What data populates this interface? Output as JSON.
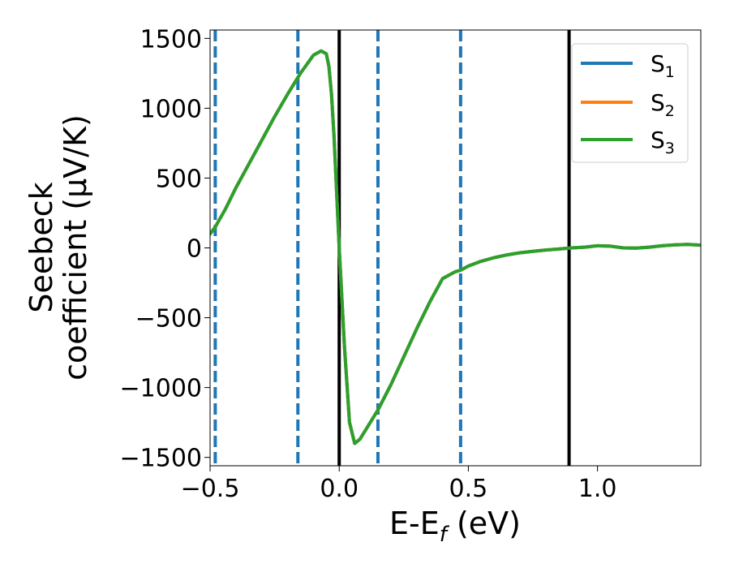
{
  "chart_data": {
    "type": "line",
    "xlabel": {
      "main": "E-E",
      "sub": "f",
      "unit": " (eV)"
    },
    "ylabel": {
      "line1": "Seebeck",
      "line2": "coefficient  (μV/K)"
    },
    "xlim": [
      -0.5,
      1.4
    ],
    "ylim": [
      -1560,
      1560
    ],
    "xticks": [
      -0.5,
      0.0,
      0.5,
      1.0
    ],
    "xtick_labels": [
      "−0.5",
      "0.0",
      "0.5",
      "1.0"
    ],
    "yticks": [
      1500,
      1000,
      500,
      0,
      -500,
      -1000,
      -1500
    ],
    "ytick_labels": [
      "1500",
      "1000",
      "500",
      "0",
      "−500",
      "−1000",
      "−1500"
    ],
    "grid": false,
    "legend_position": "top-right",
    "series": [
      {
        "name": {
          "main": "S",
          "sub": "1"
        },
        "color": "#1f77b4",
        "x": [
          -0.5,
          -0.48,
          -0.44,
          -0.4,
          -0.35,
          -0.3,
          -0.25,
          -0.2,
          -0.15,
          -0.1,
          -0.07,
          -0.05,
          -0.04,
          -0.03,
          -0.02,
          -0.01,
          0.0,
          0.02,
          0.04,
          0.06,
          0.08,
          0.1,
          0.15,
          0.2,
          0.25,
          0.3,
          0.35,
          0.4,
          0.45,
          0.47,
          0.5,
          0.55,
          0.6,
          0.65,
          0.7,
          0.75,
          0.8,
          0.85,
          0.9,
          0.95,
          1.0,
          1.05,
          1.1,
          1.15,
          1.2,
          1.25,
          1.3,
          1.35,
          1.4
        ],
        "y": [
          100,
          150,
          280,
          430,
          600,
          770,
          940,
          1100,
          1250,
          1380,
          1410,
          1390,
          1300,
          1100,
          800,
          400,
          0,
          -700,
          -1250,
          -1400,
          -1370,
          -1310,
          -1160,
          -980,
          -780,
          -580,
          -390,
          -220,
          -170,
          -160,
          -130,
          -95,
          -70,
          -50,
          -35,
          -25,
          -15,
          -8,
          0,
          5,
          15,
          12,
          0,
          -2,
          5,
          15,
          22,
          25,
          20
        ]
      },
      {
        "name": {
          "main": "S",
          "sub": "2"
        },
        "color": "#ff7f0e",
        "x": [
          -0.5,
          -0.48,
          -0.44,
          -0.4,
          -0.35,
          -0.3,
          -0.25,
          -0.2,
          -0.15,
          -0.1,
          -0.07,
          -0.05,
          -0.04,
          -0.03,
          -0.02,
          -0.01,
          0.0,
          0.02,
          0.04,
          0.06,
          0.08,
          0.1,
          0.15,
          0.2,
          0.25,
          0.3,
          0.35,
          0.4,
          0.45,
          0.47,
          0.5,
          0.55,
          0.6,
          0.65,
          0.7,
          0.75,
          0.8,
          0.85,
          0.9,
          0.95,
          1.0,
          1.05,
          1.1,
          1.15,
          1.2,
          1.25,
          1.3,
          1.35,
          1.4
        ],
        "y": [
          100,
          150,
          280,
          430,
          600,
          770,
          940,
          1100,
          1250,
          1380,
          1410,
          1390,
          1300,
          1100,
          800,
          400,
          0,
          -700,
          -1250,
          -1400,
          -1370,
          -1310,
          -1160,
          -980,
          -780,
          -580,
          -390,
          -220,
          -170,
          -160,
          -130,
          -95,
          -70,
          -50,
          -35,
          -25,
          -15,
          -8,
          0,
          5,
          15,
          12,
          0,
          -2,
          5,
          15,
          22,
          25,
          20
        ]
      },
      {
        "name": {
          "main": "S",
          "sub": "3"
        },
        "color": "#2ca02c",
        "x": [
          -0.5,
          -0.48,
          -0.44,
          -0.4,
          -0.35,
          -0.3,
          -0.25,
          -0.2,
          -0.15,
          -0.1,
          -0.07,
          -0.05,
          -0.04,
          -0.03,
          -0.02,
          -0.01,
          0.0,
          0.02,
          0.04,
          0.06,
          0.08,
          0.1,
          0.15,
          0.2,
          0.25,
          0.3,
          0.35,
          0.4,
          0.45,
          0.47,
          0.5,
          0.55,
          0.6,
          0.65,
          0.7,
          0.75,
          0.8,
          0.85,
          0.9,
          0.95,
          1.0,
          1.05,
          1.1,
          1.15,
          1.2,
          1.25,
          1.3,
          1.35,
          1.4
        ],
        "y": [
          100,
          150,
          280,
          430,
          600,
          770,
          940,
          1100,
          1250,
          1380,
          1410,
          1390,
          1300,
          1100,
          800,
          400,
          0,
          -700,
          -1250,
          -1400,
          -1370,
          -1310,
          -1160,
          -980,
          -780,
          -580,
          -390,
          -220,
          -170,
          -160,
          -130,
          -95,
          -70,
          -50,
          -35,
          -25,
          -15,
          -8,
          0,
          5,
          15,
          12,
          0,
          -2,
          5,
          15,
          22,
          25,
          20
        ]
      }
    ],
    "vertical_lines": [
      {
        "x": -0.48,
        "style": "dashed",
        "color": "#1f77b4"
      },
      {
        "x": -0.16,
        "style": "dashed",
        "color": "#1f77b4"
      },
      {
        "x": 0.0,
        "style": "solid",
        "color": "#000000"
      },
      {
        "x": 0.15,
        "style": "dashed",
        "color": "#1f77b4"
      },
      {
        "x": 0.47,
        "style": "dashed",
        "color": "#1f77b4"
      },
      {
        "x": 0.89,
        "style": "solid",
        "color": "#000000"
      }
    ]
  }
}
